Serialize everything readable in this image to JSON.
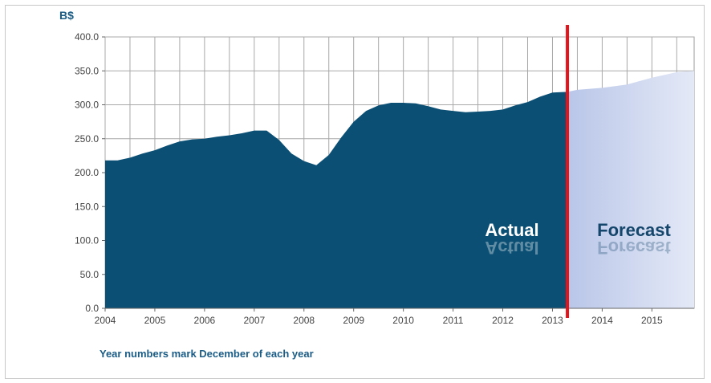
{
  "chart_data": {
    "type": "area",
    "unit_label": "B$",
    "note": "Year numbers mark December of each year",
    "xlim": [
      2004,
      2015.85
    ],
    "ylim": [
      0,
      400
    ],
    "y_ticks": [
      "0.0",
      "50.0",
      "100.0",
      "150.0",
      "200.0",
      "250.0",
      "300.0",
      "350.0",
      "400.0"
    ],
    "x_ticks": [
      "2004",
      "2005",
      "2006",
      "2007",
      "2008",
      "2009",
      "2010",
      "2011",
      "2012",
      "2013",
      "2014",
      "2015"
    ],
    "grid": true,
    "split_x": 2013.3,
    "region_labels": {
      "actual": "Actual",
      "forecast": "Forecast"
    },
    "colors": {
      "actual": "#0b4f74",
      "forecast": "#c8d3ee",
      "split_line": "#e3141b",
      "axis_text": "#1a5c86"
    },
    "series": [
      {
        "segment": "actual",
        "x": [
          2004.0,
          2004.25,
          2004.5,
          2004.75,
          2005.0,
          2005.25,
          2005.5,
          2005.75,
          2006.0,
          2006.25,
          2006.5,
          2006.75,
          2007.0,
          2007.25,
          2007.5,
          2007.75,
          2008.0,
          2008.25,
          2008.5,
          2008.75,
          2009.0,
          2009.25,
          2009.5,
          2009.75,
          2010.0,
          2010.25,
          2010.5,
          2010.75,
          2011.0,
          2011.25,
          2011.5,
          2011.75,
          2012.0,
          2012.25,
          2012.5,
          2012.75,
          2013.0,
          2013.3
        ],
        "values": [
          218,
          218,
          222,
          228,
          233,
          240,
          246,
          249,
          250,
          253,
          255,
          258,
          262,
          262,
          248,
          228,
          217,
          211,
          226,
          252,
          275,
          291,
          299,
          303,
          303,
          302,
          298,
          293,
          291,
          289,
          290,
          291,
          293,
          299,
          304,
          312,
          318,
          319
        ]
      },
      {
        "segment": "forecast",
        "x": [
          2013.3,
          2013.5,
          2014.0,
          2014.5,
          2015.0,
          2015.5,
          2015.85
        ],
        "values": [
          319,
          322,
          325,
          330,
          340,
          348,
          350
        ]
      }
    ]
  }
}
